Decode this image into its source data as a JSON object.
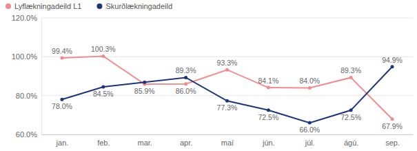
{
  "chart_data": {
    "type": "line",
    "categories": [
      "jan.",
      "feb.",
      "mar.",
      "apr.",
      "maí",
      "jún.",
      "júl.",
      "ágú.",
      "sep."
    ],
    "series": [
      {
        "name": "Lyflækningadeild L1",
        "color": "#f28b90",
        "marker": "circle",
        "values": [
          99.4,
          100.3,
          85.9,
          86.0,
          93.3,
          84.1,
          84.0,
          89.3,
          67.9
        ],
        "value_labels": [
          "99.4%",
          "100.3%",
          "85.9%",
          "86.0%",
          "93.3%",
          "84.1%",
          "84.0%",
          "89.3%",
          "67.9%"
        ]
      },
      {
        "name": "Skurðlækningadeild",
        "color": "#1c3578",
        "marker": "circle",
        "values": [
          78.0,
          84.5,
          86.9,
          89.3,
          77.3,
          72.5,
          66.0,
          72.5,
          94.9
        ],
        "value_labels": [
          "78.0%",
          "84.5%",
          null,
          "89.3%",
          "77.3%",
          "72.5%",
          "66.0%",
          "72.5%",
          "94.9%"
        ]
      }
    ],
    "ylim": [
      60,
      120
    ],
    "yticks": [
      {
        "value": 60,
        "label": "60.0%"
      },
      {
        "value": 80,
        "label": "80.0%"
      },
      {
        "value": 100,
        "label": "100.0%"
      },
      {
        "value": 120,
        "label": "120.0%"
      }
    ],
    "grid": true,
    "legend": "top-left",
    "data_labels": true
  }
}
